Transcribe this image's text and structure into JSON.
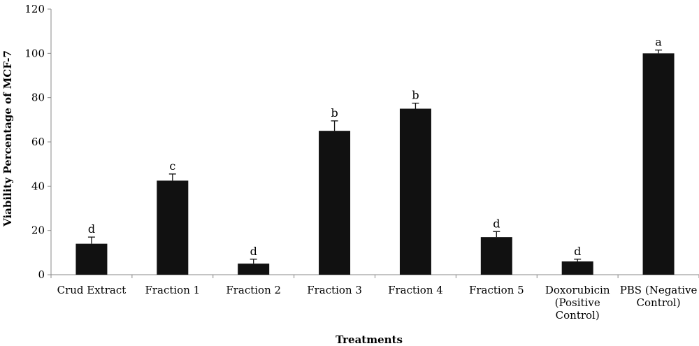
{
  "chart_data": {
    "type": "bar",
    "title": "",
    "xlabel": "Treatments",
    "ylabel": "Viability Percentage of MCF-7",
    "ylim": [
      0,
      120
    ],
    "yticks": [
      0,
      20,
      40,
      60,
      80,
      100,
      120
    ],
    "grid": false,
    "categories": [
      [
        "Crud Extract"
      ],
      [
        "Fraction 1"
      ],
      [
        "Fraction 2"
      ],
      [
        "Fraction 3"
      ],
      [
        "Fraction 4"
      ],
      [
        "Fraction 5"
      ],
      [
        "Doxorubicin",
        "(Positive",
        "Control)"
      ],
      [
        "PBS (Negative",
        "Control)"
      ]
    ],
    "values": [
      14,
      42.5,
      5,
      65,
      75,
      17,
      6,
      100
    ],
    "errors": [
      3,
      3,
      2,
      4.5,
      2.5,
      2.5,
      1,
      1.5
    ],
    "significance": [
      "d",
      "c",
      "d",
      "b",
      "b",
      "d",
      "d",
      "a"
    ],
    "bar_color": "#111111"
  }
}
